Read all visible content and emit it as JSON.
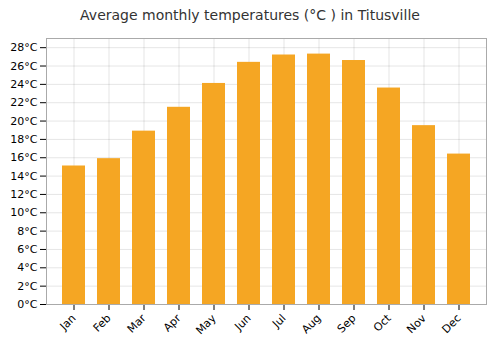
{
  "chart_data": {
    "type": "bar",
    "title": "Average monthly temperatures (°C ) in Titusville",
    "categories": [
      "Jan",
      "Feb",
      "Mar",
      "Apr",
      "May",
      "Jun",
      "Jul",
      "Aug",
      "Sep",
      "Oct",
      "Nov",
      "Dec"
    ],
    "values": [
      15.1,
      15.9,
      18.9,
      21.5,
      24.1,
      26.4,
      27.2,
      27.3,
      26.6,
      23.6,
      19.5,
      16.4
    ],
    "color": "#F5A623",
    "ylim": [
      0,
      29
    ],
    "yticks": [
      {
        "value": 0,
        "label": "0°C"
      },
      {
        "value": 2,
        "label": "2°C"
      },
      {
        "value": 4,
        "label": "4°C"
      },
      {
        "value": 6,
        "label": "6°C"
      },
      {
        "value": 8,
        "label": "8°C"
      },
      {
        "value": 10,
        "label": "10°C"
      },
      {
        "value": 12,
        "label": "12°C"
      },
      {
        "value": 14,
        "label": "14°C"
      },
      {
        "value": 16,
        "label": "16°C"
      },
      {
        "value": 18,
        "label": "18°C"
      },
      {
        "value": 20,
        "label": "20°C"
      },
      {
        "value": 22,
        "label": "22°C"
      },
      {
        "value": 24,
        "label": "24°C"
      },
      {
        "value": 26,
        "label": "26°C"
      },
      {
        "value": 28,
        "label": "28°C"
      }
    ],
    "grid": true
  }
}
